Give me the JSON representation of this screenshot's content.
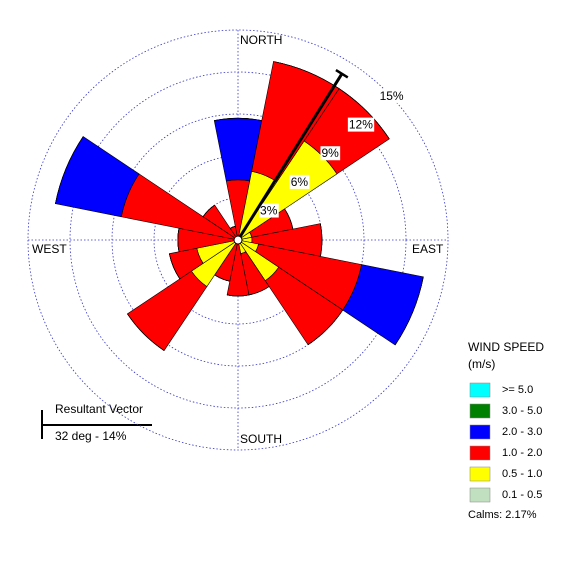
{
  "chart_data": {
    "type": "windrose",
    "x": [
      0,
      22.5,
      45,
      67.5,
      90,
      112.5,
      135,
      157.5,
      180,
      202.5,
      225,
      247.5,
      270,
      292.5,
      315,
      337.5
    ],
    "direction_labels": {
      "north": "NORTH",
      "east": "EAST",
      "south": "SOUTH",
      "west": "WEST"
    },
    "rlim": [
      0,
      15
    ],
    "rticks": [
      {
        "value": 3,
        "label": "3%"
      },
      {
        "value": 6,
        "label": "6%"
      },
      {
        "value": 9,
        "label": "9%"
      },
      {
        "value": 12,
        "label": "12%"
      },
      {
        "value": 15,
        "label": "15%"
      }
    ],
    "legend_title": [
      "WIND SPEED",
      "(m/s)"
    ],
    "series": [
      {
        "name": "0.1 - 0.5",
        "color": "#c0e0c0",
        "values": [
          0,
          0,
          0,
          0,
          0,
          0,
          0,
          0,
          0,
          0,
          0,
          0,
          0,
          0,
          0,
          0
        ]
      },
      {
        "name": "0.5 - 1.0",
        "color": "#ffff00",
        "values": [
          0,
          5,
          8.5,
          1,
          1,
          1.5,
          3.5,
          1,
          0,
          0,
          4,
          3,
          0,
          0,
          0,
          0
        ]
      },
      {
        "name": "1.0 - 2.0",
        "color": "#ff0000",
        "values": [
          4.3,
          8,
          4.5,
          3,
          5,
          7.5,
          5.5,
          3,
          4,
          3,
          5.5,
          2,
          4.3,
          8.5,
          3,
          1
        ]
      },
      {
        "name": "2.0 - 3.0",
        "color": "#0000ff",
        "values": [
          4.4,
          0,
          0,
          0,
          0,
          4.5,
          0,
          0,
          0,
          0,
          0,
          0,
          0,
          4.8,
          0,
          0
        ]
      },
      {
        "name": "3.0 - 5.0",
        "color": "#008000",
        "values": [
          0,
          0,
          0,
          0,
          0,
          0,
          0,
          0,
          0,
          0,
          0,
          0,
          0,
          0,
          0,
          0
        ]
      },
      {
        "name": ">= 5.0",
        "color": "#00ffff",
        "values": [
          0,
          0,
          0,
          0,
          0,
          0,
          0,
          0,
          0,
          0,
          0,
          0,
          0,
          0,
          0,
          0
        ]
      }
    ],
    "resultant": {
      "title": "Resultant Vector",
      "label": "32 deg - 14%",
      "direction": 32,
      "magnitude": 14
    },
    "calms": "Calms: 2.17%"
  }
}
